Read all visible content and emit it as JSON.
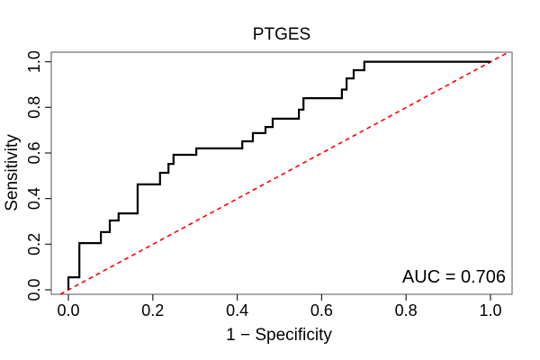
{
  "figure": {
    "title": "PTGES",
    "annotation": "AUC = 0.706"
  },
  "chart_data": {
    "type": "line",
    "subtype": "roc-step-curve",
    "title": "PTGES",
    "xlabel": "1 − Specificity",
    "ylabel": "Sensitivity",
    "xlim": [
      0,
      1
    ],
    "ylim": [
      0,
      1
    ],
    "grid": false,
    "legend": "none",
    "x_ticks": [
      0.0,
      0.2,
      0.4,
      0.6,
      0.8,
      1.0
    ],
    "x_tick_labels": [
      "0.0",
      "0.2",
      "0.4",
      "0.6",
      "0.8",
      "1.0"
    ],
    "y_ticks": [
      0.0,
      0.2,
      0.4,
      0.6,
      0.8,
      1.0
    ],
    "y_tick_labels": [
      "0.0",
      "0.2",
      "0.4",
      "0.6",
      "0.8",
      "1.0"
    ],
    "auc": 0.706,
    "annotation": "AUC = 0.706",
    "series": [
      {
        "name": "ROC curve",
        "style": "step-solid",
        "color": "#000000",
        "line_width": 2.2,
        "x": [
          0.0,
          0.0,
          0.026,
          0.026,
          0.077,
          0.077,
          0.098,
          0.098,
          0.119,
          0.119,
          0.164,
          0.164,
          0.217,
          0.217,
          0.237,
          0.237,
          0.249,
          0.249,
          0.303,
          0.303,
          0.412,
          0.412,
          0.437,
          0.437,
          0.467,
          0.467,
          0.484,
          0.484,
          0.546,
          0.546,
          0.557,
          0.557,
          0.648,
          0.648,
          0.659,
          0.659,
          0.676,
          0.676,
          0.701,
          0.701,
          1.0
        ],
        "y": [
          0.0,
          0.055,
          0.055,
          0.205,
          0.205,
          0.253,
          0.253,
          0.304,
          0.304,
          0.335,
          0.335,
          0.462,
          0.462,
          0.513,
          0.513,
          0.552,
          0.552,
          0.592,
          0.592,
          0.62,
          0.62,
          0.651,
          0.651,
          0.687,
          0.687,
          0.714,
          0.714,
          0.75,
          0.75,
          0.79,
          0.79,
          0.84,
          0.84,
          0.878,
          0.878,
          0.927,
          0.927,
          0.963,
          0.963,
          1.0,
          1.0
        ]
      },
      {
        "name": "Chance diagonal",
        "style": "dashed",
        "color": "#FF0000",
        "line_width": 1.6,
        "x": [
          0,
          1
        ],
        "y": [
          0,
          1
        ]
      }
    ]
  }
}
